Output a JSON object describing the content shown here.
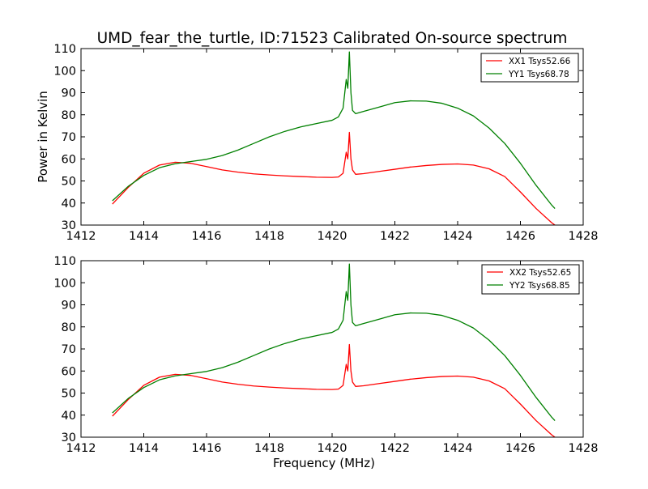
{
  "figure": {
    "title": "UMD_fear_the_turtle, ID:71523 Calibrated On-source spectrum"
  },
  "chart_data": [
    {
      "type": "line",
      "title": "UMD_fear_the_turtle, ID:71523 Calibrated On-source spectrum",
      "xlabel": "",
      "ylabel": "Power in Kelvin",
      "xlim": [
        1412,
        1428
      ],
      "ylim": [
        30,
        110
      ],
      "xticks": [
        1412,
        1414,
        1416,
        1418,
        1420,
        1422,
        1424,
        1426,
        1428
      ],
      "yticks": [
        30,
        40,
        50,
        60,
        70,
        80,
        90,
        100,
        110
      ],
      "grid": false,
      "legend_position": "top-right",
      "series": [
        {
          "name": "XX1 Tsys52.66",
          "color": "#ff0000",
          "x": [
            1413.0,
            1413.5,
            1414.0,
            1414.5,
            1415.0,
            1415.5,
            1416.0,
            1416.5,
            1417.0,
            1417.5,
            1418.0,
            1418.5,
            1419.0,
            1419.5,
            1420.0,
            1420.2,
            1420.35,
            1420.45,
            1420.5,
            1420.55,
            1420.6,
            1420.65,
            1420.75,
            1421.0,
            1421.5,
            1422.0,
            1422.5,
            1423.0,
            1423.5,
            1424.0,
            1424.5,
            1425.0,
            1425.5,
            1426.0,
            1426.5,
            1427.0,
            1427.1
          ],
          "y": [
            39.5,
            47.0,
            53.5,
            57.2,
            58.5,
            58.0,
            56.5,
            55.0,
            54.0,
            53.2,
            52.7,
            52.3,
            52.0,
            51.7,
            51.6,
            51.8,
            53.5,
            63.0,
            60.0,
            72.0,
            60.0,
            55.0,
            53.0,
            53.3,
            54.3,
            55.3,
            56.3,
            57.0,
            57.5,
            57.7,
            57.2,
            55.5,
            52.0,
            45.0,
            37.5,
            31.0,
            30.0
          ]
        },
        {
          "name": "YY1 Tsys68.78",
          "color": "#008000",
          "x": [
            1413.0,
            1413.5,
            1414.0,
            1414.5,
            1415.0,
            1415.5,
            1416.0,
            1416.5,
            1417.0,
            1417.5,
            1418.0,
            1418.5,
            1419.0,
            1419.5,
            1420.0,
            1420.2,
            1420.35,
            1420.45,
            1420.5,
            1420.55,
            1420.6,
            1420.65,
            1420.75,
            1421.0,
            1421.5,
            1422.0,
            1422.5,
            1423.0,
            1423.5,
            1424.0,
            1424.5,
            1425.0,
            1425.5,
            1426.0,
            1426.5,
            1427.0,
            1427.1
          ],
          "y": [
            41.0,
            47.5,
            52.5,
            56.0,
            57.8,
            58.8,
            59.8,
            61.5,
            64.0,
            67.0,
            70.0,
            72.5,
            74.5,
            76.0,
            77.5,
            79.0,
            83.0,
            96.0,
            92.0,
            108.5,
            90.0,
            82.0,
            80.5,
            81.5,
            83.5,
            85.5,
            86.3,
            86.2,
            85.2,
            83.0,
            79.5,
            74.0,
            67.0,
            58.0,
            48.0,
            39.0,
            37.5
          ]
        }
      ]
    },
    {
      "type": "line",
      "title": "",
      "xlabel": "Frequency (MHz)",
      "ylabel": "",
      "xlim": [
        1412,
        1428
      ],
      "ylim": [
        30,
        110
      ],
      "xticks": [
        1412,
        1414,
        1416,
        1418,
        1420,
        1422,
        1424,
        1426,
        1428
      ],
      "yticks": [
        30,
        40,
        50,
        60,
        70,
        80,
        90,
        100,
        110
      ],
      "grid": false,
      "legend_position": "top-right",
      "series": [
        {
          "name": "XX2 Tsys52.65",
          "color": "#ff0000",
          "x": [
            1413.0,
            1413.5,
            1414.0,
            1414.5,
            1415.0,
            1415.5,
            1416.0,
            1416.5,
            1417.0,
            1417.5,
            1418.0,
            1418.5,
            1419.0,
            1419.5,
            1420.0,
            1420.2,
            1420.35,
            1420.45,
            1420.5,
            1420.55,
            1420.6,
            1420.65,
            1420.75,
            1421.0,
            1421.5,
            1422.0,
            1422.5,
            1423.0,
            1423.5,
            1424.0,
            1424.5,
            1425.0,
            1425.5,
            1426.0,
            1426.5,
            1427.0,
            1427.1
          ],
          "y": [
            39.5,
            47.0,
            53.5,
            57.2,
            58.5,
            58.0,
            56.5,
            55.0,
            54.0,
            53.2,
            52.7,
            52.3,
            52.0,
            51.7,
            51.6,
            51.8,
            53.5,
            63.0,
            60.0,
            72.0,
            60.0,
            55.0,
            53.0,
            53.3,
            54.3,
            55.3,
            56.3,
            57.0,
            57.5,
            57.7,
            57.2,
            55.5,
            52.0,
            45.0,
            37.5,
            31.0,
            30.0
          ]
        },
        {
          "name": "YY2 Tsys68.85",
          "color": "#008000",
          "x": [
            1413.0,
            1413.5,
            1414.0,
            1414.5,
            1415.0,
            1415.5,
            1416.0,
            1416.5,
            1417.0,
            1417.5,
            1418.0,
            1418.5,
            1419.0,
            1419.5,
            1420.0,
            1420.2,
            1420.35,
            1420.45,
            1420.5,
            1420.55,
            1420.6,
            1420.65,
            1420.75,
            1421.0,
            1421.5,
            1422.0,
            1422.5,
            1423.0,
            1423.5,
            1424.0,
            1424.5,
            1425.0,
            1425.5,
            1426.0,
            1426.5,
            1427.0,
            1427.1
          ],
          "y": [
            41.0,
            47.5,
            52.5,
            56.0,
            57.8,
            58.8,
            59.8,
            61.5,
            64.0,
            67.0,
            70.0,
            72.5,
            74.5,
            76.0,
            77.5,
            79.0,
            83.0,
            96.0,
            92.0,
            108.5,
            90.0,
            82.0,
            80.5,
            81.5,
            83.5,
            85.5,
            86.3,
            86.2,
            85.2,
            83.0,
            79.5,
            74.0,
            67.0,
            58.0,
            48.0,
            39.0,
            37.5
          ]
        }
      ]
    }
  ]
}
